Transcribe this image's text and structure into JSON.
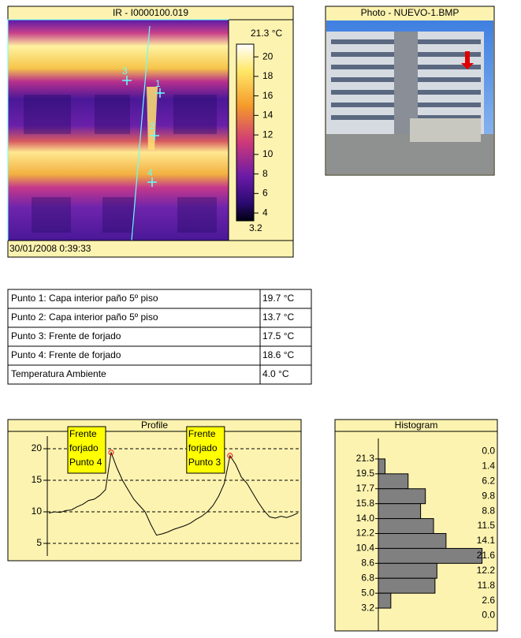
{
  "ir": {
    "title": "IR - I0000100.019",
    "date": "30/01/2008 0:39:33",
    "points": [
      "1",
      "2",
      "3",
      "4"
    ],
    "scale": {
      "max_label": "21.3 °C",
      "lim": [
        3.2,
        21.3
      ],
      "ticks": [
        20,
        18,
        16,
        14,
        12,
        10,
        8,
        6,
        4
      ]
    }
  },
  "photo": {
    "title": "Photo - NUEVO-1.BMP"
  },
  "table": {
    "rows": [
      [
        "Punto 1: Capa interior paño 5º piso",
        "19.7 °C"
      ],
      [
        "Punto 2: Capa interior paño 5º piso",
        "13.7 °C"
      ],
      [
        "Punto 3: Frente de forjado",
        "17.5 °C"
      ],
      [
        "Punto 4: Frente de forjado",
        "18.6 °C"
      ],
      [
        "Temperatura Ambiente",
        "4.0 °C"
      ]
    ]
  },
  "chart_data": [
    {
      "type": "line",
      "title": "Profile",
      "color": "#000000",
      "grid": true,
      "values": [
        9.8,
        10,
        9.9,
        10.2,
        10.3,
        10.8,
        11.2,
        11.8,
        12,
        12.6,
        13.5,
        19.4,
        17,
        15,
        13.5,
        12,
        11,
        10,
        8,
        6.3,
        6.5,
        6.8,
        7.2,
        7.5,
        7.8,
        8.2,
        8.8,
        9.3,
        10,
        11,
        12.5,
        14.5,
        18.9,
        17.5,
        15.5,
        14.5,
        13,
        11.5,
        10.2,
        9.2,
        9,
        9.3,
        9.1,
        9.4,
        9.8
      ],
      "ylim": [
        2.5,
        22.5
      ],
      "yticks": [
        5,
        10,
        15,
        20
      ],
      "annotations": [
        {
          "lines": [
            "Frente",
            "forjado",
            "Punto 4"
          ],
          "point": 11
        },
        {
          "lines": [
            "Frente",
            "forjado",
            "Punto 3"
          ],
          "point": 32
        }
      ]
    },
    {
      "type": "hbar",
      "title": "Histogram",
      "color": "#808080",
      "values": [
        0,
        1.4,
        6.2,
        9.8,
        8.8,
        11.5,
        14.1,
        21.6,
        12.2,
        11.8,
        2.6,
        0
      ],
      "value_labels": [
        "0.0",
        "1.4",
        "6.2",
        "9.8",
        "8.8",
        "11.5",
        "14.1",
        "21.6",
        "12.2",
        "11.8",
        "2.6",
        "0.0"
      ],
      "xlim": [
        0,
        22
      ],
      "yticks": [
        21.3,
        19.5,
        17.7,
        15.8,
        {
          "value": 14,
          "label": "14.0"
        },
        12.2,
        10.4,
        8.6,
        6.8,
        {
          "value": 5,
          "label": "5.0"
        },
        3.2
      ]
    }
  ]
}
